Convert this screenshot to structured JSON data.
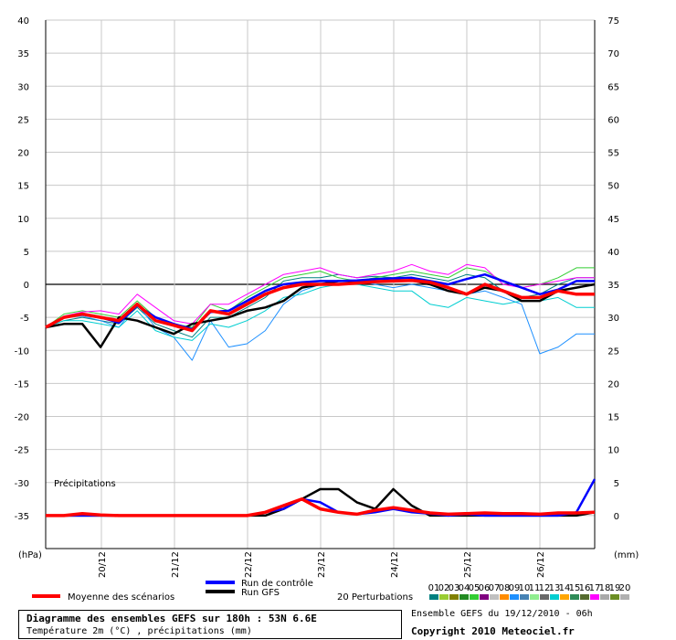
{
  "chart_data": {
    "type": "line",
    "title": "Diagramme des ensembles GEFS sur 180h : 53N 6.6E",
    "subtitle": "Température 2m (°C) , précipitations (mm)",
    "source_run": "Ensemble GEFS du 19/12/2010 - 06h",
    "copyright": "Copyright 2010 Meteociel.fr",
    "left_axis": {
      "label": "(hPa)",
      "ticks": [
        40,
        35,
        30,
        25,
        20,
        15,
        10,
        5,
        0,
        -5,
        -10,
        -15,
        -20,
        -25,
        -30,
        -35
      ],
      "range": [
        -40,
        40
      ]
    },
    "right_axis": {
      "label": "(mm)",
      "ticks": [
        75,
        70,
        65,
        60,
        55,
        50,
        45,
        40,
        35,
        30,
        25,
        20,
        15,
        10,
        5,
        0
      ]
    },
    "date_labels": [
      "20/12",
      "21/12",
      "22/12",
      "23/12",
      "24/12",
      "25/12",
      "26/12"
    ],
    "precip_label": "Précipitations",
    "legend": {
      "mean_label": "Moyenne des scénarios",
      "control_label": "Run de contrôle",
      "gfs_label": "Run GFS",
      "perturbations_label": "20 Perturbations",
      "perturbation_numbers": [
        "01",
        "02",
        "03",
        "04",
        "05",
        "06",
        "07",
        "08",
        "09",
        "10",
        "11",
        "12",
        "13",
        "14",
        "15",
        "16",
        "17",
        "18",
        "19",
        "20"
      ],
      "perturbation_colors": [
        "#008080",
        "#9acd32",
        "#808000",
        "#228b22",
        "#32cd32",
        "#800080",
        "#c0c0c0",
        "#ff8c00",
        "#1e90ff",
        "#4682b4",
        "#90ee90",
        "#696969",
        "#00ced1",
        "#ffa500",
        "#2e8b57",
        "#556b2f",
        "#ff00ff",
        "#a9a9a9",
        "#6b8e23",
        "#b0b0b0"
      ]
    },
    "x_hours": [
      0,
      6,
      12,
      18,
      24,
      30,
      36,
      42,
      48,
      54,
      60,
      66,
      72,
      78,
      84,
      90,
      96,
      102,
      108,
      114,
      120,
      126,
      132,
      138,
      144,
      150,
      156,
      162,
      168,
      174,
      180
    ],
    "temperature": {
      "mean": [
        -6.5,
        -5.0,
        -4.5,
        -5.0,
        -5.5,
        -3.0,
        -5.5,
        -6.2,
        -7.0,
        -4.0,
        -4.5,
        -3.0,
        -1.5,
        -0.5,
        0.0,
        0.0,
        0.0,
        0.2,
        0.4,
        0.5,
        0.6,
        0.3,
        -0.5,
        -1.5,
        0.0,
        -1.0,
        -2.0,
        -2.0,
        -1.0,
        -1.5,
        -1.5
      ],
      "control": [
        -6.5,
        -5.0,
        -4.5,
        -5.0,
        -5.8,
        -3.2,
        -5.0,
        -6.0,
        -6.8,
        -4.2,
        -4.0,
        -2.5,
        -1.0,
        0.0,
        0.3,
        0.5,
        0.5,
        0.6,
        0.8,
        0.9,
        1.0,
        0.5,
        0.0,
        0.8,
        1.5,
        0.5,
        -0.5,
        -1.5,
        -0.8,
        0.5,
        0.5
      ],
      "gfs": [
        -6.5,
        -6.0,
        -6.0,
        -9.5,
        -5.0,
        -5.5,
        -6.5,
        -7.5,
        -6.0,
        -5.5,
        -5.0,
        -4.0,
        -3.5,
        -2.5,
        -0.5,
        0.0,
        0.5,
        0.5,
        0.4,
        0.5,
        0.6,
        0.0,
        -1.0,
        -1.5,
        -0.5,
        -1.0,
        -2.5,
        -2.5,
        -1.0,
        -0.5,
        0.0
      ],
      "perturbations_sample": [
        [
          -6.5,
          -5.5,
          -5.0,
          -5.5,
          -6.0,
          -3.5,
          -6.0,
          -7.0,
          -8.0,
          -5.0,
          -5.0,
          -3.5,
          -2.0,
          0.5,
          1.0,
          1.0,
          1.5,
          1.0,
          1.2,
          1.0,
          1.5,
          1.0,
          0.5,
          1.5,
          1.0,
          -1.0,
          -2.0,
          -1.5,
          0.0,
          1.0,
          1.0
        ],
        [
          -6.5,
          -4.5,
          -4.0,
          -4.5,
          -5.0,
          -2.5,
          -5.0,
          -6.0,
          -6.5,
          -3.0,
          -4.0,
          -2.0,
          -0.5,
          1.0,
          1.5,
          2.0,
          1.0,
          0.5,
          1.0,
          1.5,
          2.0,
          1.5,
          1.0,
          2.5,
          2.0,
          0.5,
          -0.5,
          0.0,
          1.0,
          2.5,
          2.5
        ],
        [
          -6.5,
          -5.0,
          -4.8,
          -5.5,
          -6.5,
          -3.0,
          -6.5,
          -8.0,
          -11.5,
          -5.5,
          -9.5,
          -9.0,
          -7.0,
          -3.0,
          -1.0,
          0.0,
          0.5,
          0.5,
          0.0,
          -0.5,
          0.0,
          -0.5,
          -1.0,
          -1.5,
          -1.0,
          -2.0,
          -3.0,
          -10.5,
          -9.5,
          -7.5,
          -7.5
        ],
        [
          -6.5,
          -5.5,
          -5.5,
          -6.0,
          -6.5,
          -4.0,
          -7.0,
          -8.0,
          -8.5,
          -6.0,
          -6.5,
          -5.5,
          -4.0,
          -2.0,
          -1.5,
          -0.5,
          0.0,
          0.0,
          -0.5,
          -1.0,
          -1.0,
          -3.0,
          -3.5,
          -2.0,
          -2.5,
          -3.0,
          -2.5,
          -2.5,
          -2.0,
          -3.5,
          -3.5
        ],
        [
          -6.5,
          -4.8,
          -4.2,
          -4.0,
          -4.5,
          -1.5,
          -3.5,
          -5.5,
          -6.0,
          -3.0,
          -3.0,
          -1.5,
          0.0,
          1.5,
          2.0,
          2.5,
          1.5,
          1.0,
          1.5,
          2.0,
          3.0,
          2.0,
          1.5,
          3.0,
          2.5,
          0.0,
          -0.5,
          0.0,
          0.5,
          1.0,
          1.0
        ]
      ]
    },
    "precipitation_mm": {
      "mean": [
        0.0,
        0.0,
        0.3,
        0.1,
        0.0,
        0.0,
        0.0,
        0.0,
        0.0,
        0.0,
        0.0,
        0.0,
        0.5,
        1.5,
        2.5,
        1.0,
        0.5,
        0.2,
        0.8,
        1.2,
        0.8,
        0.4,
        0.2,
        0.3,
        0.4,
        0.3,
        0.3,
        0.2,
        0.4,
        0.4,
        0.5
      ],
      "control": [
        0.0,
        0.0,
        0.0,
        0.0,
        0.0,
        0.0,
        0.0,
        0.0,
        0.0,
        0.0,
        0.0,
        0.0,
        0.5,
        1.0,
        2.5,
        2.0,
        0.5,
        0.2,
        0.5,
        1.0,
        0.5,
        0.3,
        0.0,
        0.2,
        0.0,
        0.0,
        0.0,
        0.0,
        0.0,
        0.5,
        5.5
      ],
      "gfs": [
        0.0,
        0.0,
        0.0,
        0.0,
        0.0,
        0.0,
        0.0,
        0.0,
        0.0,
        0.0,
        0.0,
        0.0,
        0.0,
        1.0,
        2.5,
        4.0,
        4.0,
        2.0,
        1.0,
        4.0,
        1.5,
        0.0,
        0.0,
        0.0,
        0.0,
        0.0,
        0.0,
        0.0,
        0.0,
        0.0,
        0.5
      ]
    }
  }
}
